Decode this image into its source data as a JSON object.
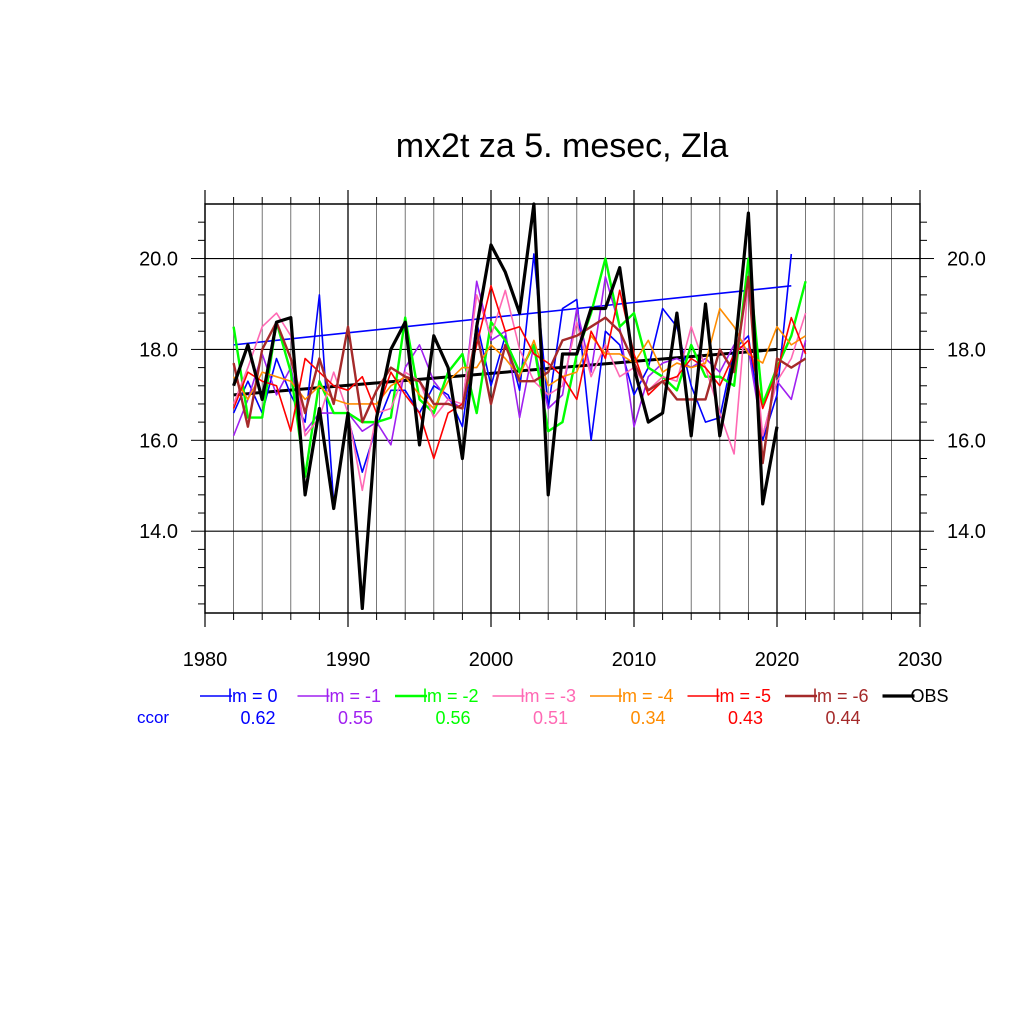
{
  "chart_data": {
    "type": "line",
    "title": "mx2t za 5. mesec, Zla",
    "xlabel": "",
    "ylabel": "",
    "xlim": [
      1980,
      2030
    ],
    "ylim": [
      12.2,
      21.2
    ],
    "x_ticks": [
      "1980",
      "1990",
      "2000",
      "2010",
      "2020",
      "2030"
    ],
    "y_ticks": [
      "14.0",
      "16.0",
      "18.0",
      "20.0"
    ],
    "grid": true,
    "legend_position": "bottom",
    "ccor_label": "ccor",
    "series": [
      {
        "name": "lm = 0",
        "color": "#0000ff",
        "ccor": "0.62",
        "width": 1.6,
        "x": [
          1982,
          1983,
          1984,
          1985,
          1986,
          1987,
          1988,
          1989,
          1990,
          1991,
          1992,
          1993,
          1994,
          1995,
          1996,
          1997,
          1998,
          1999,
          2000,
          2001,
          2002,
          2003,
          2004,
          2005,
          2006,
          2007,
          2008,
          2009,
          2010,
          2011,
          2012,
          2013,
          2014,
          2015,
          2016,
          2017,
          2018,
          2019,
          2020,
          2021
        ],
        "y": [
          16.6,
          17.3,
          16.6,
          17.8,
          17.0,
          16.4,
          19.2,
          14.6,
          16.5,
          15.3,
          16.3,
          17.1,
          17.1,
          16.6,
          17.2,
          17.0,
          16.3,
          18.6,
          17.2,
          18.3,
          17.1,
          20.1,
          16.7,
          18.9,
          19.1,
          16.0,
          18.4,
          18.1,
          17.0,
          17.6,
          18.9,
          18.5,
          17.2,
          16.4,
          16.5,
          18.0,
          18.3,
          16.0,
          17.0,
          20.1
        ]
      },
      {
        "name": "lm = -1",
        "color": "#a020f0",
        "ccor": "0.55",
        "width": 1.6,
        "x": [
          1982,
          1983,
          1984,
          1985,
          1986,
          1987,
          1988,
          1989,
          1990,
          1991,
          1992,
          1993,
          1994,
          1995,
          1996,
          1997,
          1998,
          1999,
          2000,
          2001,
          2002,
          2003,
          2004,
          2005,
          2006,
          2007,
          2008,
          2009,
          2010,
          2011,
          2012,
          2013,
          2014,
          2015,
          2016,
          2017,
          2018,
          2019,
          2020,
          2021,
          2022
        ],
        "y": [
          16.1,
          16.9,
          17.9,
          17.0,
          17.6,
          16.2,
          16.6,
          16.6,
          16.6,
          16.2,
          16.4,
          15.9,
          17.6,
          18.1,
          17.3,
          16.9,
          16.7,
          19.5,
          18.2,
          18.4,
          16.5,
          18.1,
          16.7,
          17.0,
          18.9,
          17.5,
          19.6,
          18.5,
          16.3,
          17.4,
          17.7,
          17.8,
          17.6,
          17.8,
          17.5,
          18.1,
          18.0,
          16.1,
          17.3,
          16.9,
          18.2
        ]
      },
      {
        "name": "lm = -2",
        "color": "#00ff00",
        "ccor": "0.56",
        "width": 2.4,
        "x": [
          1982,
          1983,
          1984,
          1985,
          1986,
          1987,
          1988,
          1989,
          1990,
          1991,
          1992,
          1993,
          1994,
          1995,
          1996,
          1997,
          1998,
          1999,
          2000,
          2001,
          2002,
          2003,
          2004,
          2005,
          2006,
          2007,
          2008,
          2009,
          2010,
          2011,
          2012,
          2013,
          2014,
          2015,
          2016,
          2017,
          2018,
          2019,
          2020,
          2021,
          2022
        ],
        "y": [
          18.5,
          16.5,
          16.5,
          18.6,
          17.5,
          15.2,
          17.3,
          16.6,
          16.6,
          16.4,
          16.4,
          16.5,
          18.7,
          16.9,
          16.6,
          17.5,
          17.9,
          16.6,
          18.6,
          18.2,
          17.5,
          18.1,
          16.2,
          16.4,
          17.9,
          18.8,
          20.0,
          18.5,
          18.8,
          17.6,
          17.4,
          17.1,
          18.1,
          17.4,
          17.4,
          17.2,
          20.0,
          16.8,
          17.6,
          18.3,
          19.5
        ]
      },
      {
        "name": "lm = -3",
        "color": "#ff69b4",
        "ccor": "0.51",
        "width": 1.6,
        "x": [
          1982,
          1983,
          1984,
          1985,
          1986,
          1987,
          1988,
          1989,
          1990,
          1991,
          1992,
          1993,
          1994,
          1995,
          1996,
          1997,
          1998,
          1999,
          2000,
          2001,
          2002,
          2003,
          2004,
          2005,
          2006,
          2007,
          2008,
          2009,
          2010,
          2011,
          2012,
          2013,
          2014,
          2015,
          2016,
          2017,
          2018,
          2019,
          2020,
          2021,
          2022
        ],
        "y": [
          16.8,
          17.6,
          18.5,
          18.8,
          18.3,
          16.1,
          16.5,
          17.5,
          16.6,
          14.9,
          16.6,
          16.7,
          17.5,
          17.3,
          16.5,
          16.9,
          16.8,
          19.2,
          18.3,
          19.3,
          18.0,
          17.3,
          17.0,
          17.2,
          18.6,
          17.4,
          18.1,
          17.4,
          17.6,
          17.1,
          17.4,
          17.3,
          18.5,
          17.6,
          16.6,
          15.7,
          19.5,
          16.1,
          17.3,
          17.8,
          18.8
        ]
      },
      {
        "name": "lm = -4",
        "color": "#ff8c00",
        "ccor": "0.34",
        "width": 1.6,
        "x": [
          1982,
          1983,
          1984,
          1985,
          1986,
          1987,
          1988,
          1989,
          1990,
          1991,
          1992,
          1993,
          1994,
          1995,
          1996,
          1997,
          1998,
          1999,
          2000,
          2001,
          2002,
          2003,
          2004,
          2005,
          2006,
          2007,
          2008,
          2009,
          2010,
          2011,
          2012,
          2013,
          2014,
          2015,
          2016,
          2017,
          2018,
          2019,
          2020,
          2021,
          2022
        ],
        "y": [
          17.4,
          16.9,
          17.5,
          17.4,
          17.3,
          16.9,
          17.2,
          16.9,
          16.8,
          16.8,
          16.8,
          17.2,
          17.4,
          17.0,
          16.7,
          17.3,
          17.6,
          17.6,
          18.1,
          17.8,
          17.4,
          18.2,
          17.2,
          17.4,
          17.5,
          18.3,
          17.9,
          17.9,
          17.7,
          18.2,
          17.5,
          17.7,
          17.6,
          17.7,
          18.9,
          18.5,
          17.9,
          17.7,
          18.5,
          18.1,
          18.3
        ]
      },
      {
        "name": "lm = -5",
        "color": "#ff0000",
        "ccor": "0.43",
        "width": 1.6,
        "x": [
          1982,
          1983,
          1984,
          1985,
          1986,
          1987,
          1988,
          1989,
          1990,
          1991,
          1992,
          1993,
          1994,
          1995,
          1996,
          1997,
          1998,
          1999,
          2000,
          2001,
          2002,
          2003,
          2004,
          2005,
          2006,
          2007,
          2008,
          2009,
          2010,
          2011,
          2012,
          2013,
          2014,
          2015,
          2016,
          2017,
          2018,
          2019,
          2020,
          2021,
          2022
        ],
        "y": [
          16.7,
          17.5,
          17.3,
          17.2,
          16.2,
          17.8,
          17.5,
          17.2,
          17.1,
          17.4,
          16.6,
          17.5,
          17.0,
          16.6,
          15.6,
          16.6,
          16.8,
          18.1,
          19.4,
          18.4,
          18.5,
          17.9,
          17.7,
          17.4,
          16.9,
          18.4,
          17.8,
          19.3,
          17.9,
          17.0,
          17.3,
          17.4,
          17.8,
          17.6,
          17.2,
          17.9,
          18.2,
          16.7,
          17.5,
          18.7,
          17.9
        ]
      },
      {
        "name": "lm = -6",
        "color": "#a52a2a",
        "ccor": "0.44",
        "width": 2.4,
        "x": [
          1982,
          1983,
          1984,
          1985,
          1986,
          1987,
          1988,
          1989,
          1990,
          1991,
          1992,
          1993,
          1994,
          1995,
          1996,
          1997,
          1998,
          1999,
          2000,
          2001,
          2002,
          2003,
          2004,
          2005,
          2006,
          2007,
          2008,
          2009,
          2010,
          2011,
          2012,
          2013,
          2014,
          2015,
          2016,
          2017,
          2018,
          2019,
          2020,
          2021,
          2022
        ],
        "y": [
          17.7,
          16.3,
          18.0,
          18.6,
          17.8,
          16.6,
          17.8,
          16.8,
          18.5,
          16.4,
          17.1,
          17.6,
          17.4,
          17.3,
          16.8,
          16.8,
          16.7,
          18.4,
          16.8,
          18.1,
          17.3,
          17.3,
          17.5,
          18.2,
          18.3,
          18.5,
          18.7,
          18.4,
          17.7,
          17.1,
          17.3,
          16.9,
          16.9,
          16.9,
          18.0,
          17.5,
          19.6,
          15.5,
          17.8,
          17.6,
          17.8
        ]
      },
      {
        "name": "OBS",
        "color": "#000000",
        "ccor": "",
        "width": 3.2,
        "x": [
          1982,
          1983,
          1984,
          1985,
          1986,
          1987,
          1988,
          1989,
          1990,
          1991,
          1992,
          1993,
          1994,
          1995,
          1996,
          1997,
          1998,
          1999,
          2000,
          2001,
          2002,
          2003,
          2004,
          2005,
          2006,
          2007,
          2008,
          2009,
          2010,
          2011,
          2012,
          2013,
          2014,
          2015,
          2016,
          2017,
          2018,
          2019,
          2020
        ],
        "y": [
          17.2,
          18.1,
          16.9,
          18.6,
          18.7,
          14.8,
          16.7,
          14.5,
          16.6,
          12.3,
          16.5,
          18.0,
          18.6,
          15.9,
          18.3,
          17.6,
          15.6,
          18.5,
          20.3,
          19.7,
          18.8,
          21.2,
          14.8,
          17.9,
          17.9,
          18.9,
          18.9,
          19.8,
          17.6,
          16.4,
          16.6,
          18.8,
          16.1,
          19.0,
          16.1,
          17.8,
          21.0,
          14.6,
          16.3
        ]
      }
    ],
    "trend_lines": [
      {
        "name": "lm = 0 trend",
        "color": "#0000ff",
        "width": 1.6,
        "x": [
          1982,
          2021
        ],
        "y": [
          18.1,
          19.4
        ]
      },
      {
        "name": "OBS trend",
        "color": "#000000",
        "width": 3.0,
        "x": [
          1982,
          2020
        ],
        "y": [
          17.0,
          18.0
        ]
      }
    ]
  }
}
